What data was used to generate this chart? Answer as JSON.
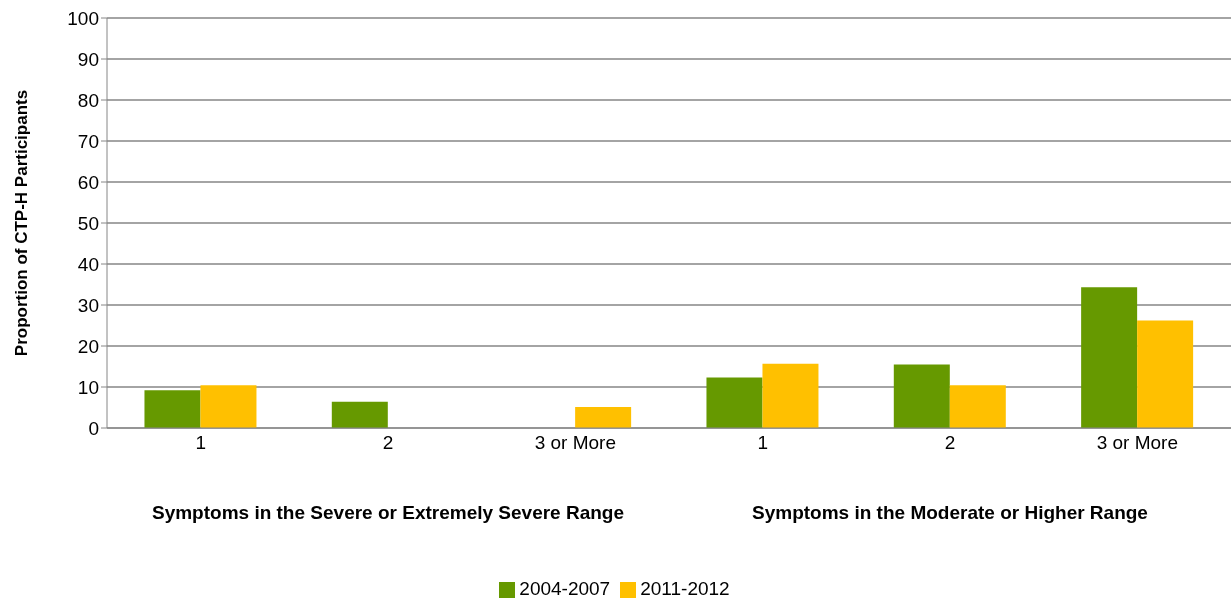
{
  "chart_data": {
    "type": "bar",
    "ylabel": "Proportion of CTP-H Participants",
    "categories": [
      "1",
      "2",
      "3 or More",
      "1",
      "2",
      "3 or More"
    ],
    "series": [
      {
        "name": "2004-2007",
        "color": "#669900",
        "values": [
          9.2,
          6.4,
          0,
          12.3,
          15.5,
          34.3
        ]
      },
      {
        "name": "2011-2012",
        "color": "#ffc000",
        "values": [
          10.4,
          0,
          5.1,
          15.7,
          10.4,
          26.2
        ]
      }
    ],
    "annotations": [
      "Symptoms in the Severe or Extremely Severe Range",
      "Symptoms in the Moderate or Higher Range"
    ],
    "ylim": [
      0,
      100
    ],
    "yticks": [
      0,
      10,
      20,
      30,
      40,
      50,
      60,
      70,
      80,
      90,
      100
    ],
    "grid": "y",
    "legend": "bottom"
  }
}
